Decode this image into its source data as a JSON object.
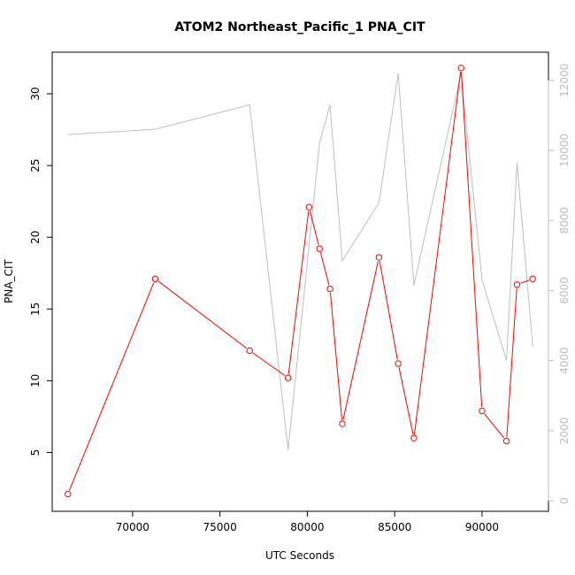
{
  "chart_data": {
    "type": "line",
    "title": "ATOM2 Northeast_Pacific_1 PNA_CIT",
    "xlabel": "UTC Seconds",
    "ylabel": "PNA_CIT",
    "xlim": [
      65400,
      93800
    ],
    "ylim": [
      0.9,
      32.9
    ],
    "y2lim": [
      -300,
      12800
    ],
    "x_ticks": [
      70000,
      75000,
      80000,
      85000,
      90000
    ],
    "y_ticks": [
      5,
      10,
      15,
      20,
      25,
      30
    ],
    "y2_ticks": [
      0,
      2000,
      4000,
      6000,
      8000,
      10000,
      12000
    ],
    "grid": false,
    "series": [
      {
        "color": "#ff0000",
        "axis": "left",
        "markers": "open-circle",
        "x": [
          66300,
          71300,
          76700,
          78900,
          80100,
          80700,
          81300,
          82000,
          84100,
          85200,
          86100,
          88800,
          90000,
          91400,
          92000,
          92900
        ],
        "y": [
          2.1,
          17.1,
          12.1,
          10.2,
          22.1,
          19.2,
          16.4,
          7.0,
          18.6,
          11.2,
          6.0,
          31.8,
          7.9,
          5.8,
          16.7,
          17.1
        ]
      },
      {
        "color": "#bebebe",
        "axis": "right",
        "markers": "none",
        "x": [
          66300,
          71300,
          76700,
          78900,
          80700,
          81300,
          82000,
          84100,
          85200,
          86100,
          88800,
          90000,
          91400,
          92000,
          92900
        ],
        "y": [
          10450,
          10600,
          11300,
          1450,
          10200,
          11300,
          6850,
          8500,
          12200,
          6150,
          12200,
          6300,
          4000,
          9650,
          4400
        ]
      }
    ]
  }
}
